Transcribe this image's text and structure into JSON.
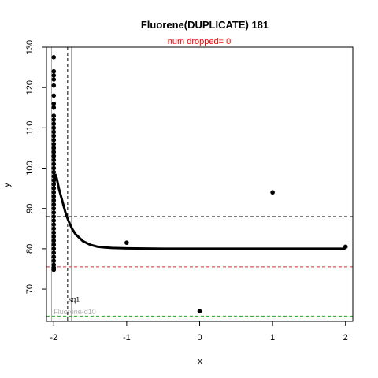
{
  "chart_data": {
    "type": "scatter",
    "title": "Fluorene(DUPLICATE) 181",
    "subtitle": "num dropped= 0",
    "xlabel": "x",
    "ylabel": "y",
    "xlim": [
      -2.1,
      2.1
    ],
    "ylim": [
      62,
      130
    ],
    "x_ticks": [
      -2,
      -1,
      0,
      1,
      2
    ],
    "y_ticks": [
      70,
      80,
      90,
      100,
      110,
      120,
      130
    ],
    "points": [
      {
        "x": -2,
        "y": 127.5
      },
      {
        "x": -2,
        "y": 124
      },
      {
        "x": -2,
        "y": 123
      },
      {
        "x": -2,
        "y": 122
      },
      {
        "x": -2,
        "y": 120.5
      },
      {
        "x": -2,
        "y": 118
      },
      {
        "x": -2,
        "y": 116
      },
      {
        "x": -2,
        "y": 115
      },
      {
        "x": -2,
        "y": 113
      },
      {
        "x": -2,
        "y": 112
      },
      {
        "x": -2,
        "y": 111
      },
      {
        "x": -2,
        "y": 110
      },
      {
        "x": -2,
        "y": 109
      },
      {
        "x": -2,
        "y": 108
      },
      {
        "x": -2,
        "y": 107
      },
      {
        "x": -2,
        "y": 106
      },
      {
        "x": -2,
        "y": 105
      },
      {
        "x": -2,
        "y": 104
      },
      {
        "x": -2,
        "y": 103
      },
      {
        "x": -2,
        "y": 102
      },
      {
        "x": -2,
        "y": 101
      },
      {
        "x": -2,
        "y": 100
      },
      {
        "x": -2,
        "y": 99
      },
      {
        "x": -2,
        "y": 98
      },
      {
        "x": -2,
        "y": 97
      },
      {
        "x": -2,
        "y": 96
      },
      {
        "x": -2,
        "y": 95
      },
      {
        "x": -2,
        "y": 94
      },
      {
        "x": -2,
        "y": 93
      },
      {
        "x": -2,
        "y": 92
      },
      {
        "x": -2,
        "y": 91
      },
      {
        "x": -2,
        "y": 90
      },
      {
        "x": -2,
        "y": 89
      },
      {
        "x": -2,
        "y": 88
      },
      {
        "x": -2,
        "y": 87
      },
      {
        "x": -2,
        "y": 86
      },
      {
        "x": -2,
        "y": 85
      },
      {
        "x": -2,
        "y": 84
      },
      {
        "x": -2,
        "y": 83
      },
      {
        "x": -2,
        "y": 82
      },
      {
        "x": -2,
        "y": 81
      },
      {
        "x": -2,
        "y": 80
      },
      {
        "x": -2,
        "y": 79
      },
      {
        "x": -2,
        "y": 78
      },
      {
        "x": -2,
        "y": 77
      },
      {
        "x": -2,
        "y": 76
      },
      {
        "x": -2,
        "y": 75.3
      },
      {
        "x": -2,
        "y": 74.8
      },
      {
        "x": -1,
        "y": 81.5
      },
      {
        "x": 0,
        "y": 64.5
      },
      {
        "x": 1,
        "y": 94
      },
      {
        "x": 2,
        "y": 80.5
      }
    ],
    "fit_curve": {
      "color": "#000000",
      "points": [
        {
          "x": -2.0,
          "y": 95
        },
        {
          "x": -1.98,
          "y": 98.5
        },
        {
          "x": -1.96,
          "y": 97.5
        },
        {
          "x": -1.93,
          "y": 95
        },
        {
          "x": -1.9,
          "y": 93
        },
        {
          "x": -1.87,
          "y": 91
        },
        {
          "x": -1.84,
          "y": 89
        },
        {
          "x": -1.8,
          "y": 87
        },
        {
          "x": -1.75,
          "y": 85
        },
        {
          "x": -1.7,
          "y": 83.6
        },
        {
          "x": -1.6,
          "y": 81.9
        },
        {
          "x": -1.5,
          "y": 81
        },
        {
          "x": -1.4,
          "y": 80.5
        },
        {
          "x": -1.3,
          "y": 80.3
        },
        {
          "x": -1.2,
          "y": 80.2
        },
        {
          "x": -1.0,
          "y": 80.1
        },
        {
          "x": -0.5,
          "y": 80
        },
        {
          "x": 0,
          "y": 80
        },
        {
          "x": 1.0,
          "y": 80
        },
        {
          "x": 2.0,
          "y": 80
        }
      ]
    },
    "hlines": [
      {
        "y": 88,
        "color": "#000000",
        "dash": "dashed"
      },
      {
        "y": 75.5,
        "color": "#cc3333",
        "dash": "dashed"
      },
      {
        "y": 63.3,
        "color": "#22aa22",
        "dash": "dashed"
      }
    ],
    "vlines": [
      {
        "x": -2.03,
        "color": "#aaaaaa",
        "dash": "solid"
      },
      {
        "x": -1.81,
        "color": "#000000",
        "dash": "dashed"
      },
      {
        "x": -1.76,
        "color": "#aaaaaa",
        "dash": "solid"
      }
    ],
    "annotations": [
      {
        "text": "sq1",
        "x": -1.8,
        "y": 66.8,
        "color": "#000000"
      },
      {
        "text": "Fluorene-d10",
        "x": -2.0,
        "y": 63.8,
        "color": "#b0b0b0"
      }
    ]
  }
}
